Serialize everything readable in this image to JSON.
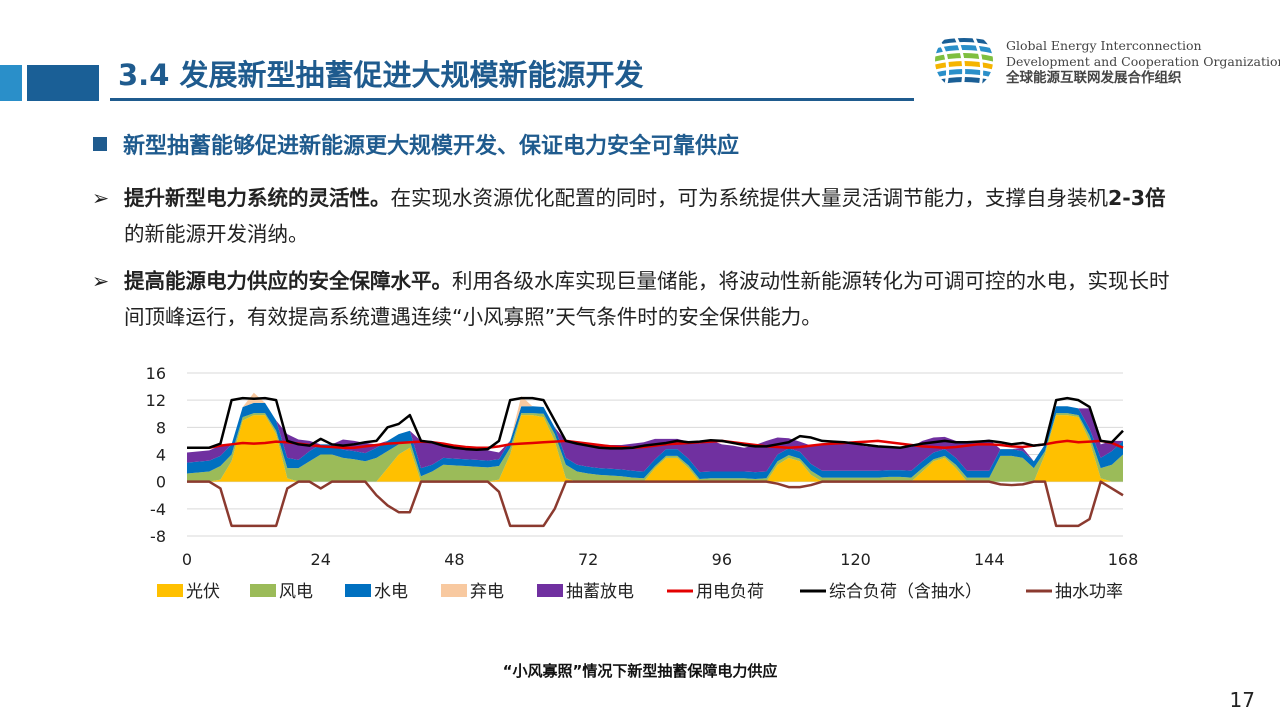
{
  "header": {
    "title": "3.4 发展新型抽蓄促进大规模新能源开发",
    "org_en_line1": "Global Energy Interconnection",
    "org_en_line2": "Development and Cooperation Organization",
    "org_cn": "全球能源互联网发展合作组织"
  },
  "main_bullet": "新型抽蓄能够促进新能源更大规模开发、保证电力安全可靠供应",
  "points": [
    {
      "arrow": "➢",
      "bold": "提升新型电力系统的灵活性。",
      "text1": "在实现水资源优化配置的同时，可为系统提供大量灵活调节能力，支撑自身装机",
      "bold2": "2-3倍",
      "text2": "的新能源开发消纳。"
    },
    {
      "arrow": "➢",
      "bold": "提高能源电力供应的安全保障水平。",
      "text1": "利用各级水库实现巨量储能，将波动性新能源转化为可调可控的水电，实现长时间顶峰运行，有效提高系统遭遇连续“小风寡照”天气条件时的安全保供能力。",
      "bold2": "",
      "text2": ""
    }
  ],
  "caption": "“小风寡照”情况下新型抽蓄保障电力供应",
  "page_number": "17",
  "colors": {
    "solar": "#ffc000",
    "wind": "#9bbb59",
    "hydro": "#0070c0",
    "curtail": "#f8c9a0",
    "pumped": "#7030a0",
    "load": "#e30000",
    "total": "#000000",
    "pump": "#8b3a2f",
    "title": "#1f5b8e"
  },
  "chart_data": {
    "type": "area",
    "title": "",
    "xlabel": "",
    "ylabel": "",
    "xlim": [
      0,
      168
    ],
    "ylim": [
      -8,
      16
    ],
    "xticks": [
      "0",
      "24",
      "48",
      "72",
      "96",
      "120",
      "144",
      "168"
    ],
    "yticks": [
      "16",
      "12",
      "8",
      "4",
      "0",
      "-4",
      "-8"
    ],
    "grid": "horizontal",
    "legend_position": "bottom",
    "x": [
      0,
      4,
      6,
      8,
      10,
      12,
      14,
      16,
      18,
      20,
      22,
      24,
      26,
      28,
      30,
      32,
      34,
      36,
      38,
      40,
      42,
      44,
      46,
      48,
      50,
      52,
      54,
      56,
      58,
      60,
      62,
      64,
      66,
      68,
      70,
      72,
      74,
      76,
      78,
      80,
      82,
      84,
      86,
      88,
      90,
      92,
      94,
      96,
      98,
      100,
      102,
      104,
      106,
      108,
      110,
      112,
      114,
      116,
      118,
      120,
      122,
      124,
      126,
      128,
      130,
      132,
      134,
      136,
      138,
      140,
      142,
      144,
      146,
      148,
      150,
      152,
      154,
      156,
      158,
      160,
      162,
      164,
      166,
      168
    ],
    "series": [
      {
        "name": "光伏",
        "type": "area",
        "values": [
          0,
          0,
          0.3,
          3,
          9,
          9.8,
          9.8,
          7,
          0.5,
          0,
          0,
          0,
          0,
          0,
          0,
          0,
          0,
          2,
          4,
          5,
          0,
          0,
          0,
          0,
          0,
          0,
          0,
          0.3,
          4,
          9.8,
          9.8,
          9.5,
          6,
          0.5,
          0,
          0,
          0,
          0,
          0,
          0,
          0,
          2,
          3.5,
          3.5,
          2,
          0,
          0,
          0,
          0,
          0,
          0,
          0,
          2.5,
          3.5,
          3,
          1,
          0,
          0,
          0,
          0,
          0,
          0,
          0,
          0,
          0,
          1.5,
          3,
          3.5,
          2,
          0,
          0,
          0,
          0,
          0,
          0,
          0,
          4,
          9.8,
          9.8,
          9.5,
          6,
          0.5,
          0,
          0
        ]
      },
      {
        "name": "风电",
        "type": "area",
        "values": [
          1.2,
          1.5,
          2,
          1,
          0.5,
          0.3,
          0.3,
          0.5,
          1.5,
          2,
          3,
          4,
          4,
          3.5,
          3.3,
          3,
          3.5,
          2.5,
          1.5,
          1,
          0.8,
          1.5,
          2.5,
          2.4,
          2.3,
          2.2,
          2.1,
          2,
          1,
          0.3,
          0.3,
          0.5,
          1,
          2,
          1.5,
          1.2,
          1,
          0.9,
          0.8,
          0.6,
          0.5,
          0.3,
          0.3,
          0.3,
          0.4,
          0.4,
          0.5,
          0.5,
          0.5,
          0.5,
          0.4,
          0.5,
          0.5,
          0.4,
          0.4,
          0.6,
          0.6,
          0.6,
          0.6,
          0.6,
          0.6,
          0.6,
          0.7,
          0.7,
          0.6,
          0.5,
          0.3,
          0.3,
          0.5,
          0.6,
          0.6,
          0.6,
          3.8,
          3.8,
          3.5,
          2,
          0.5,
          0.3,
          0.3,
          0.3,
          0.8,
          1.5,
          2.5,
          4
        ]
      },
      {
        "name": "水电",
        "type": "area",
        "values": [
          1.6,
          1.6,
          1.5,
          1.5,
          1.5,
          1.5,
          1.5,
          1.5,
          1.5,
          1.2,
          1.5,
          1.5,
          1.5,
          1.2,
          1.2,
          1.2,
          1.5,
          1.5,
          1.5,
          1.5,
          1.2,
          1,
          1,
          1,
          1,
          1,
          1,
          1,
          1,
          1,
          1,
          1,
          1,
          1,
          1,
          1,
          1,
          1,
          1,
          1,
          1,
          1,
          1,
          1,
          1,
          1,
          1,
          1,
          1,
          1,
          1,
          1,
          1,
          1,
          1,
          1,
          1,
          1,
          1,
          1,
          1,
          1,
          1,
          1,
          1,
          1,
          1,
          1,
          1,
          1,
          1,
          1,
          1,
          1,
          1,
          1,
          1,
          1,
          1,
          1,
          1,
          1.5,
          2,
          2
        ]
      },
      {
        "name": "弃电",
        "type": "area",
        "values": [
          0,
          0,
          0,
          0,
          0,
          1.5,
          0,
          0,
          0,
          0,
          0,
          0,
          0,
          0,
          0,
          0,
          0,
          0,
          0,
          0,
          0,
          0,
          0,
          0,
          0,
          0,
          0,
          0,
          0,
          1.5,
          0,
          0,
          0,
          0,
          0,
          0,
          0,
          0,
          0,
          0,
          0,
          0,
          0,
          0,
          0,
          0,
          0,
          0,
          0,
          0,
          0,
          0,
          0,
          0,
          0,
          0,
          0,
          0,
          0,
          0,
          0,
          0,
          0,
          0,
          0,
          0,
          0,
          0,
          0,
          0,
          0,
          0,
          0,
          0,
          0,
          0,
          0,
          0,
          0,
          0,
          0,
          0,
          0,
          0
        ]
      },
      {
        "name": "抽蓄放电",
        "type": "area",
        "values": [
          1.5,
          1.5,
          1.5,
          0,
          0,
          0,
          0,
          0,
          3.5,
          3,
          1.5,
          0,
          0,
          1.5,
          1.5,
          1.5,
          0.5,
          0,
          0,
          0,
          4,
          3.5,
          1.8,
          1.6,
          1.5,
          1.5,
          1.5,
          1,
          0,
          0,
          0,
          0,
          0,
          2.5,
          3,
          3.3,
          3.5,
          3.5,
          3.6,
          4,
          4.3,
          3,
          1.5,
          1.5,
          2.5,
          4.2,
          4.6,
          4,
          3.8,
          3.5,
          4,
          4.5,
          2.5,
          1.5,
          1.5,
          2.7,
          3.9,
          4.2,
          4.1,
          3.9,
          3.6,
          3.5,
          3.3,
          3.3,
          3.5,
          3,
          2.2,
          1.8,
          2.5,
          4.2,
          4.4,
          4.6,
          0,
          0,
          0.5,
          0,
          0,
          0,
          0,
          0,
          3,
          2,
          1.5,
          0
        ]
      },
      {
        "name": "用电负荷",
        "type": "line",
        "values": [
          5,
          5,
          5.3,
          5.5,
          5.7,
          5.6,
          5.7,
          5.9,
          5.8,
          5.6,
          5.4,
          5.2,
          5.1,
          5,
          5,
          5.2,
          5.4,
          5.6,
          5.7,
          5.8,
          5.9,
          5.8,
          5.6,
          5.3,
          5.1,
          5,
          5,
          5.2,
          5.5,
          5.6,
          5.7,
          5.8,
          5.9,
          6,
          5.8,
          5.6,
          5.4,
          5.2,
          5.1,
          5,
          5.1,
          5.3,
          5.5,
          5.6,
          5.7,
          5.8,
          5.9,
          6,
          5.8,
          5.6,
          5.4,
          5.2,
          5.1,
          5,
          5.1,
          5.3,
          5.5,
          5.6,
          5.7,
          5.8,
          5.9,
          6,
          5.8,
          5.6,
          5.4,
          5.2,
          5.1,
          5,
          5.1,
          5.3,
          5.5,
          5.5,
          5.4,
          5.2,
          5.1,
          5.3,
          5.5,
          5.8,
          6,
          5.8,
          5.9,
          6,
          5.7,
          5
        ]
      },
      {
        "name": "综合负荷（含抽水）",
        "type": "line",
        "values": [
          5,
          5,
          5.6,
          12,
          12.3,
          12.2,
          12.3,
          12,
          6,
          5.5,
          5.3,
          6.3,
          5.5,
          5.3,
          5.5,
          5.8,
          6,
          8,
          8.5,
          9.8,
          6,
          5.8,
          5.3,
          5,
          4.8,
          4.7,
          4.8,
          6,
          12,
          12.3,
          12.3,
          12,
          9,
          6,
          5.6,
          5.3,
          5,
          4.9,
          4.9,
          5,
          5.3,
          5.5,
          5.7,
          6,
          5.8,
          5.9,
          6.1,
          6,
          5.7,
          5.4,
          5.2,
          5.2,
          5.5,
          5.8,
          6.7,
          6.5,
          6,
          5.9,
          5.8,
          5.6,
          5.4,
          5.2,
          5.1,
          5,
          5.3,
          5.6,
          5.8,
          6,
          5.8,
          5.8,
          5.9,
          6,
          5.8,
          5.5,
          5.7,
          5.3,
          5.5,
          12,
          12.3,
          12,
          11,
          6,
          5.8,
          7.5
        ]
      },
      {
        "name": "抽水功率",
        "type": "line",
        "values": [
          0,
          0,
          -1,
          -6.5,
          -6.5,
          -6.5,
          -6.5,
          -6.5,
          -1,
          0,
          0,
          -1,
          0,
          0,
          0,
          0,
          -2,
          -3.5,
          -4.5,
          -4.5,
          0,
          0,
          0,
          0,
          0,
          0,
          0,
          -1.5,
          -6.5,
          -6.5,
          -6.5,
          -6.5,
          -4,
          0,
          0,
          0,
          0,
          0,
          0,
          0,
          0,
          0,
          0,
          0,
          0,
          0,
          0,
          0,
          0,
          0,
          0,
          0,
          -0.3,
          -0.8,
          -0.8,
          -0.5,
          0,
          0,
          0,
          0,
          0,
          0,
          0,
          0,
          0,
          0,
          0,
          0,
          0,
          0,
          0,
          0,
          -0.4,
          -0.5,
          -0.4,
          0,
          0,
          -6.5,
          -6.5,
          -6.5,
          -5.5,
          0,
          -1,
          -2
        ]
      }
    ]
  }
}
